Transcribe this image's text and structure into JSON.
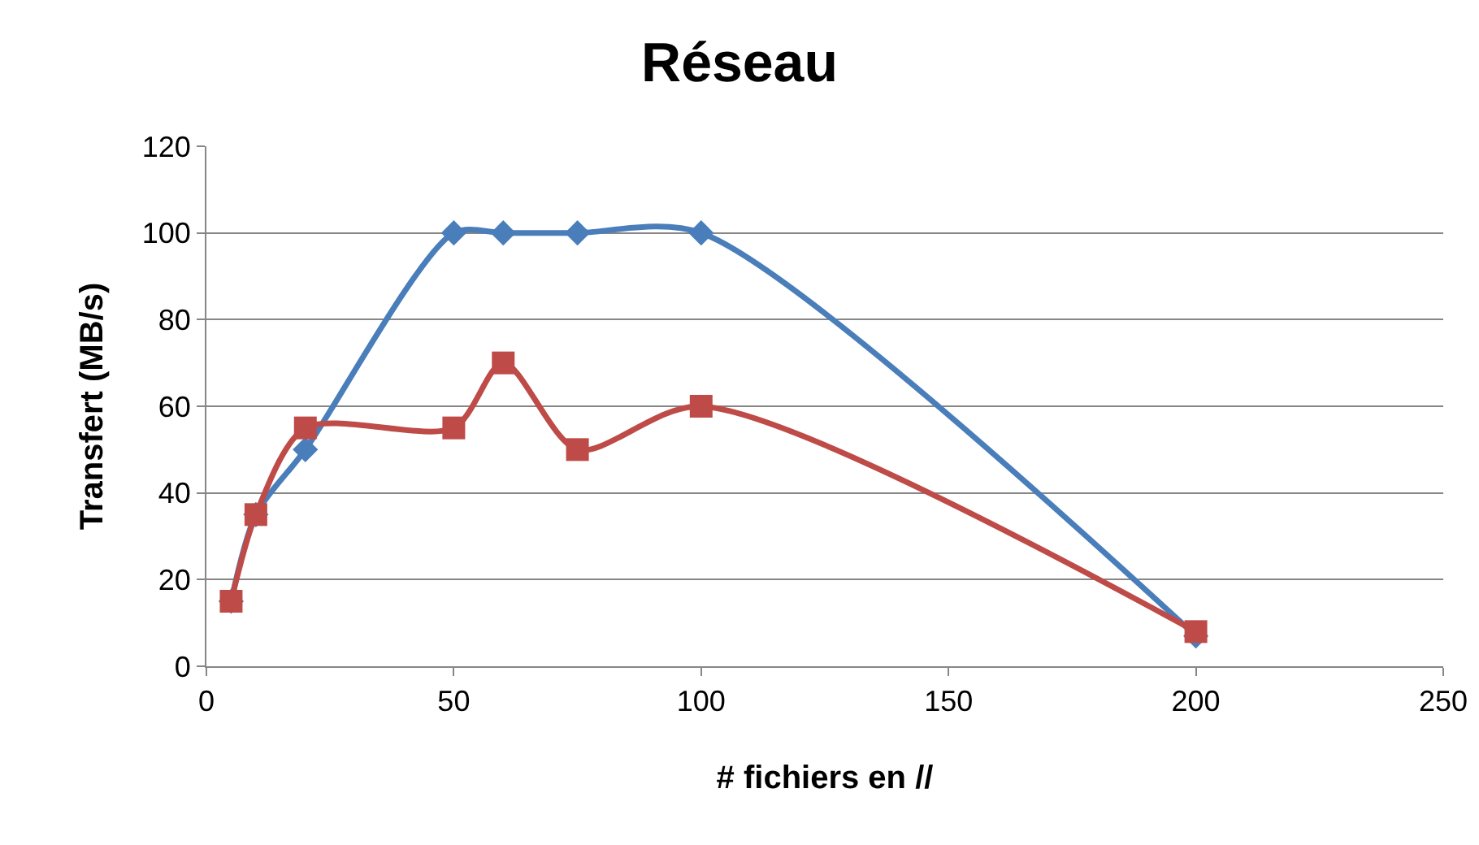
{
  "chart_data": {
    "type": "line",
    "title": "Réseau",
    "xlabel": "# fichiers en //",
    "ylabel": "Transfert (MB/s)",
    "x": [
      5,
      10,
      20,
      50,
      60,
      75,
      100,
      200
    ],
    "series": [
      {
        "color": "#4a7ebb",
        "marker": "diamond",
        "values": [
          15,
          35,
          50,
          100,
          100,
          100,
          100,
          7
        ]
      },
      {
        "color": "#be4b48",
        "marker": "square",
        "values": [
          15,
          35,
          55,
          55,
          70,
          50,
          60,
          8
        ]
      }
    ],
    "xlim": [
      0,
      250
    ],
    "xticks": [
      0,
      50,
      100,
      150,
      200,
      250
    ],
    "ylim": [
      0,
      120
    ],
    "yticks": [
      0,
      20,
      40,
      60,
      80,
      100,
      120
    ],
    "grid": "y",
    "line_style": "solid"
  }
}
